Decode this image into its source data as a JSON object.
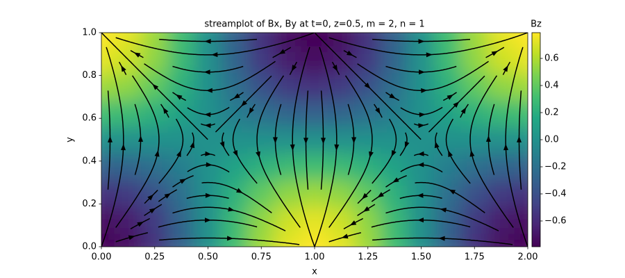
{
  "chart_data": {
    "type": "streamplot",
    "title": "streamplot of Bx, By at t=0, z=0.5, m = 2, n = 1",
    "xlabel": "x",
    "ylabel": "y",
    "colorbar_label": "Bz",
    "colormap": "viridis",
    "line_color": "#000000",
    "xlim": [
      0,
      2
    ],
    "ylim": [
      0,
      1
    ],
    "zlim": [
      -0.79,
      0.79
    ],
    "xticks": [
      {
        "value": 0,
        "label": "0.00"
      },
      {
        "value": 0.25,
        "label": "0.25"
      },
      {
        "value": 0.5,
        "label": "0.50"
      },
      {
        "value": 0.75,
        "label": "0.75"
      },
      {
        "value": 1,
        "label": "1.00"
      },
      {
        "value": 1.25,
        "label": "1.25"
      },
      {
        "value": 1.5,
        "label": "1.50"
      },
      {
        "value": 1.75,
        "label": "1.75"
      },
      {
        "value": 2,
        "label": "2.00"
      }
    ],
    "yticks": [
      {
        "value": 0,
        "label": "0.0"
      },
      0.2,
      0.4,
      0.6,
      0.8,
      {
        "value": 1,
        "label": "1.0"
      }
    ],
    "zticks": [
      {
        "value": -0.6,
        "label": "−0.6"
      },
      {
        "value": -0.4,
        "label": "−0.4"
      },
      {
        "value": -0.2,
        "label": "−0.2"
      },
      {
        "value": 0,
        "label": "0.0"
      },
      0.2,
      0.4,
      0.6
    ],
    "bz": [
      [
        -0.79,
        -0.73,
        -0.56,
        -0.3,
        0,
        0.3,
        0.56,
        0.73,
        0.79,
        0.73,
        0.56,
        0.3,
        0,
        -0.3,
        -0.56,
        -0.73,
        -0.79
      ],
      [
        -0.73,
        -0.67,
        -0.52,
        -0.28,
        0,
        0.28,
        0.52,
        0.67,
        0.73,
        0.67,
        0.52,
        0.28,
        0,
        -0.28,
        -0.52,
        -0.67,
        -0.73
      ],
      [
        -0.56,
        -0.52,
        -0.4,
        -0.21,
        0,
        0.21,
        0.4,
        0.52,
        0.56,
        0.52,
        0.4,
        0.21,
        0,
        -0.21,
        -0.4,
        -0.52,
        -0.56
      ],
      [
        -0.3,
        -0.28,
        -0.21,
        -0.12,
        0,
        0.12,
        0.21,
        0.28,
        0.3,
        0.28,
        0.21,
        0.12,
        0,
        -0.12,
        -0.21,
        -0.28,
        -0.3
      ],
      [
        0,
        0,
        0,
        0,
        0,
        0,
        0,
        0,
        0,
        0,
        0,
        0,
        0,
        0,
        0,
        0,
        0
      ],
      [
        0.3,
        0.28,
        0.21,
        0.12,
        0,
        -0.12,
        -0.21,
        -0.28,
        -0.3,
        -0.28,
        -0.21,
        -0.12,
        0,
        0.12,
        0.21,
        0.28,
        0.3
      ],
      [
        0.56,
        0.52,
        0.4,
        0.21,
        0,
        -0.21,
        -0.4,
        -0.52,
        -0.56,
        -0.52,
        -0.4,
        -0.21,
        0,
        0.21,
        0.4,
        0.52,
        0.56
      ],
      [
        0.73,
        0.67,
        0.52,
        0.28,
        0,
        -0.28,
        -0.52,
        -0.67,
        -0.73,
        -0.67,
        -0.52,
        -0.28,
        0,
        0.28,
        0.52,
        0.67,
        0.73
      ],
      [
        0.79,
        0.73,
        0.56,
        0.3,
        0,
        -0.3,
        -0.56,
        -0.73,
        -0.79,
        -0.73,
        -0.56,
        -0.3,
        0,
        0.3,
        0.56,
        0.73,
        0.79
      ]
    ],
    "bx": [
      [
        0,
        0.71,
        1,
        0.71,
        0,
        -0.71,
        -1,
        -0.71,
        0
      ],
      [
        0,
        0.5,
        0.71,
        0.5,
        0,
        -0.5,
        -0.71,
        -0.5,
        0
      ],
      [
        0,
        0,
        0,
        0,
        0,
        0,
        0,
        0,
        0
      ],
      [
        0,
        -0.5,
        -0.71,
        -0.5,
        0,
        0.5,
        0.71,
        0.5,
        0
      ],
      [
        0,
        -0.71,
        -1,
        -0.71,
        0,
        0.71,
        1,
        0.71,
        0
      ]
    ],
    "by": [
      [
        0,
        0,
        0,
        0,
        0,
        0,
        0,
        0,
        0
      ],
      [
        0.71,
        0.5,
        0,
        -0.5,
        -0.71,
        -0.5,
        0,
        0.5,
        0.71
      ],
      [
        1,
        0.71,
        0,
        -0.71,
        -1,
        -0.71,
        0,
        0.71,
        1
      ],
      [
        0.71,
        0.5,
        0,
        -0.5,
        -0.71,
        -0.5,
        0,
        0.5,
        0.71
      ],
      [
        0,
        0,
        0,
        0,
        0,
        0,
        0,
        0,
        0
      ]
    ]
  }
}
